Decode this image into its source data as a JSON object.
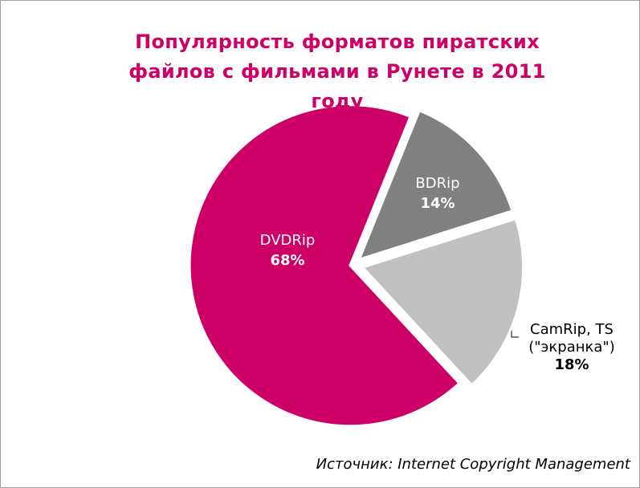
{
  "chart_data": {
    "type": "pie",
    "title": "Популярность форматов пиратских файлов с фильмами в Рунете в 2011 году",
    "categories": [
      "BDRip",
      "CamRip, TS (\"экранка\")",
      "DVDRip"
    ],
    "values": [
      14,
      18,
      68
    ],
    "value_labels": [
      "14%",
      "18%",
      "68%"
    ],
    "colors": [
      "#808080",
      "#c0c0c0",
      "#cc0066"
    ],
    "source": "Источник: Internet Copyright Management"
  }
}
